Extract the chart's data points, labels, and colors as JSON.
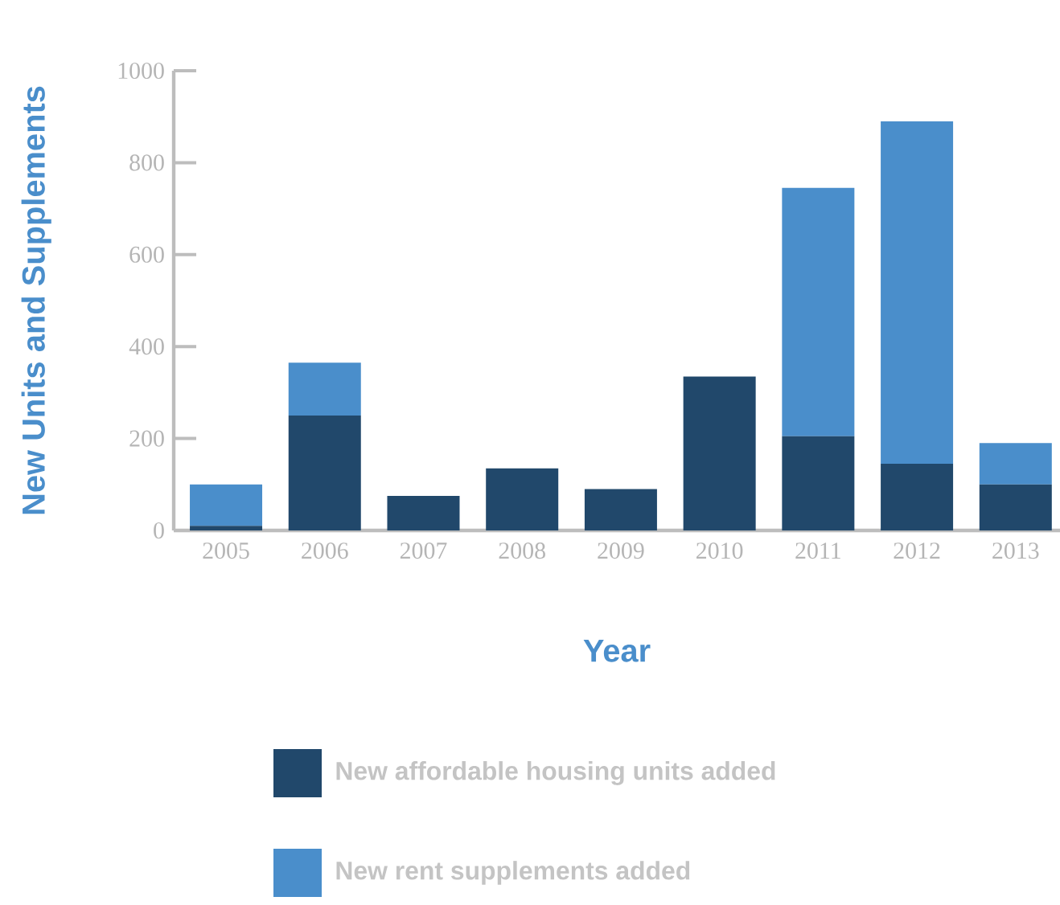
{
  "chart_data": {
    "type": "bar",
    "stacked": true,
    "xlabel": "Year",
    "ylabel": "New Units and Supplements",
    "categories": [
      "2005",
      "2006",
      "2007",
      "2008",
      "2009",
      "2010",
      "2011",
      "2012",
      "2013"
    ],
    "series": [
      {
        "name": "New affordable housing units added",
        "color": "#21486b",
        "values": [
          10,
          250,
          75,
          135,
          90,
          335,
          205,
          145,
          100
        ]
      },
      {
        "name": "New rent supplements added",
        "color": "#4a8ecb",
        "values": [
          90,
          115,
          0,
          0,
          0,
          0,
          540,
          745,
          90
        ]
      }
    ],
    "ylim": [
      0,
      1000
    ],
    "yticks": [
      0,
      200,
      400,
      600,
      800,
      1000
    ],
    "legend": "bottom"
  }
}
